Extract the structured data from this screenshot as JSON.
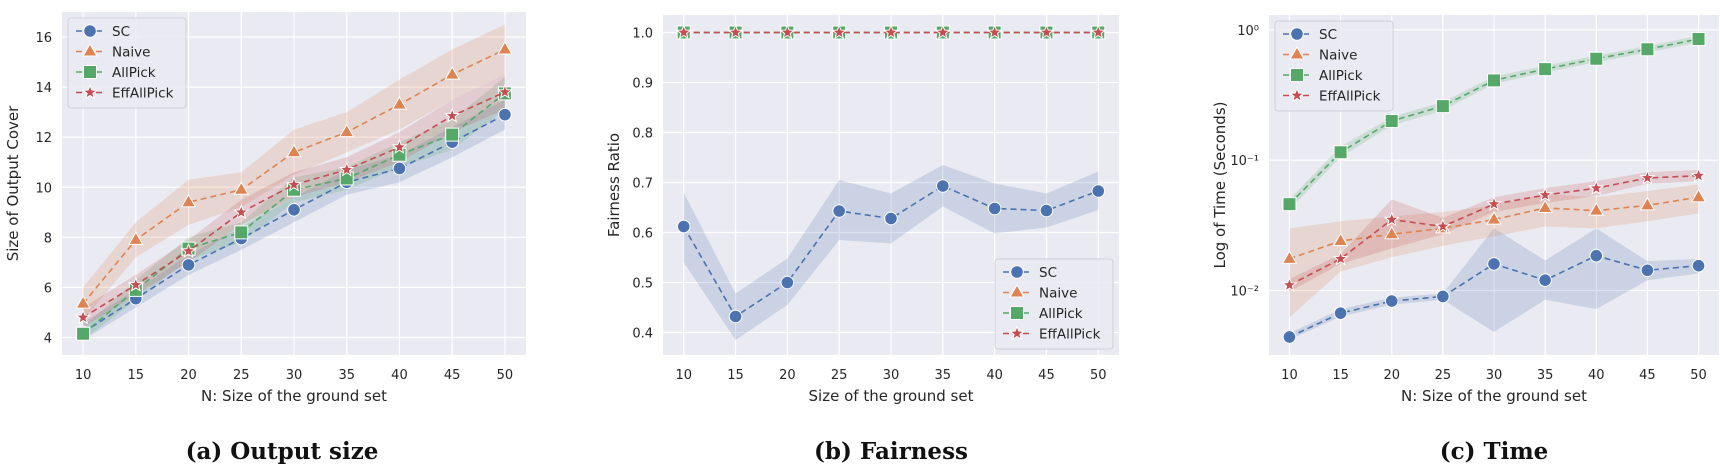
{
  "colors": {
    "SC": "#4c72b0",
    "Naive": "#dd8452",
    "AllPick": "#55a868",
    "EffAllPick": "#c44e52"
  },
  "chart_data": [
    {
      "type": "line",
      "caption": "(a) Output size",
      "xlabel": "N: Size of the ground set",
      "ylabel": "Size of Output Cover",
      "x": [
        10,
        15,
        20,
        25,
        30,
        35,
        40,
        45,
        50
      ],
      "xlim": [
        8,
        52
      ],
      "ylim": [
        3.3,
        17
      ],
      "yscale": "linear",
      "yticks": [
        4,
        6,
        8,
        10,
        12,
        14,
        16
      ],
      "ytick_labels": [
        "4",
        "6",
        "8",
        "10",
        "12",
        "14",
        "16"
      ],
      "grid": true,
      "legend": "top-left",
      "series": [
        {
          "name": "SC",
          "marker": "circle",
          "values": [
            4.2,
            5.55,
            6.9,
            7.95,
            9.1,
            10.2,
            10.75,
            11.8,
            12.9
          ],
          "lower": [
            3.9,
            5.2,
            6.5,
            7.5,
            8.6,
            9.7,
            10.2,
            11.2,
            12.3
          ],
          "upper": [
            4.6,
            5.9,
            7.3,
            8.4,
            9.6,
            10.7,
            11.3,
            12.4,
            13.5
          ]
        },
        {
          "name": "Naive",
          "marker": "triangle",
          "values": [
            5.35,
            7.9,
            9.4,
            9.9,
            11.4,
            12.2,
            13.3,
            14.5,
            15.5
          ],
          "lower": [
            4.7,
            7.2,
            8.5,
            9.2,
            10.5,
            11.4,
            12.3,
            13.5,
            14.5
          ],
          "upper": [
            6.0,
            8.6,
            10.3,
            10.6,
            12.3,
            13.0,
            14.3,
            15.5,
            16.5
          ]
        },
        {
          "name": "AllPick",
          "marker": "square",
          "values": [
            4.15,
            5.9,
            7.55,
            8.2,
            9.9,
            10.35,
            11.3,
            12.1,
            13.75
          ],
          "lower": [
            3.9,
            5.5,
            7.1,
            7.8,
            9.4,
            9.9,
            10.8,
            11.5,
            13.1
          ],
          "upper": [
            4.4,
            6.3,
            8.0,
            8.6,
            10.4,
            10.8,
            11.8,
            12.7,
            14.4
          ]
        },
        {
          "name": "EffAllPick",
          "marker": "star",
          "values": [
            4.8,
            6.1,
            7.45,
            9.0,
            10.1,
            10.7,
            11.6,
            12.85,
            13.8
          ],
          "lower": [
            4.4,
            5.7,
            7.0,
            8.5,
            9.6,
            10.2,
            11.0,
            12.2,
            13.1
          ],
          "upper": [
            5.2,
            6.5,
            7.9,
            9.5,
            10.6,
            11.2,
            12.2,
            13.5,
            14.5
          ]
        }
      ]
    },
    {
      "type": "line",
      "caption": "(b) Fairness",
      "xlabel": "Size of the ground set",
      "ylabel": "Fairness Ratio",
      "x": [
        10,
        15,
        20,
        25,
        30,
        35,
        40,
        45,
        50
      ],
      "xlim": [
        8,
        52
      ],
      "ylim": [
        0.355,
        1.035
      ],
      "yscale": "linear",
      "yticks": [
        0.4,
        0.5,
        0.6,
        0.7,
        0.8,
        0.9,
        1.0
      ],
      "ytick_labels": [
        "0.4",
        "0.5",
        "0.6",
        "0.7",
        "0.8",
        "0.9",
        "1.0"
      ],
      "grid": true,
      "legend": "bottom-right",
      "series": [
        {
          "name": "SC",
          "marker": "circle",
          "values": [
            0.612,
            0.432,
            0.5,
            0.643,
            0.628,
            0.693,
            0.648,
            0.644,
            0.683
          ],
          "lower": [
            0.54,
            0.385,
            0.455,
            0.585,
            0.578,
            0.652,
            0.598,
            0.61,
            0.645
          ],
          "upper": [
            0.68,
            0.478,
            0.548,
            0.705,
            0.678,
            0.735,
            0.698,
            0.678,
            0.722
          ]
        },
        {
          "name": "Naive",
          "marker": "triangle",
          "values": [
            1,
            1,
            1,
            1,
            1,
            1,
            1,
            1,
            1
          ]
        },
        {
          "name": "AllPick",
          "marker": "square",
          "values": [
            1,
            1,
            1,
            1,
            1,
            1,
            1,
            1,
            1
          ]
        },
        {
          "name": "EffAllPick",
          "marker": "star",
          "values": [
            1,
            1,
            1,
            1,
            1,
            1,
            1,
            1,
            1
          ]
        }
      ]
    },
    {
      "type": "line",
      "caption": "(c) Time",
      "xlabel": "N: Size of the ground set",
      "ylabel": "Log of Time (Seconds)",
      "x": [
        10,
        15,
        20,
        25,
        30,
        35,
        40,
        45,
        50
      ],
      "xlim": [
        8,
        52
      ],
      "ylim": [
        0.0032,
        1.3
      ],
      "yscale": "log",
      "yticks": [
        0.01,
        0.1,
        1
      ],
      "ytick_labels": [
        "10⁻²",
        "10⁻¹",
        "10⁰"
      ],
      "grid": true,
      "legend": "top-left",
      "series": [
        {
          "name": "SC",
          "marker": "circle",
          "values": [
            0.0044,
            0.0067,
            0.0083,
            0.009,
            0.016,
            0.012,
            0.0185,
            0.0143,
            0.0155
          ],
          "lower": [
            0.0042,
            0.0063,
            0.0078,
            0.0085,
            0.0048,
            0.0085,
            0.0072,
            0.012,
            0.0135
          ],
          "upper": [
            0.0047,
            0.0072,
            0.0088,
            0.0095,
            0.03,
            0.017,
            0.03,
            0.0168,
            0.0175
          ]
        },
        {
          "name": "Naive",
          "marker": "triangle",
          "values": [
            0.0175,
            0.024,
            0.027,
            0.03,
            0.035,
            0.043,
            0.041,
            0.045,
            0.052
          ],
          "lower": [
            0.0062,
            0.014,
            0.018,
            0.022,
            0.026,
            0.031,
            0.03,
            0.034,
            0.039
          ],
          "upper": [
            0.03,
            0.034,
            0.037,
            0.04,
            0.045,
            0.055,
            0.052,
            0.058,
            0.065
          ]
        },
        {
          "name": "AllPick",
          "marker": "square",
          "values": [
            0.046,
            0.115,
            0.2,
            0.26,
            0.41,
            0.5,
            0.6,
            0.71,
            0.85
          ],
          "lower": [
            0.042,
            0.105,
            0.185,
            0.24,
            0.385,
            0.47,
            0.565,
            0.67,
            0.8
          ],
          "upper": [
            0.05,
            0.127,
            0.215,
            0.28,
            0.44,
            0.53,
            0.635,
            0.75,
            0.9
          ]
        },
        {
          "name": "EffAllPick",
          "marker": "star",
          "values": [
            0.011,
            0.0175,
            0.035,
            0.031,
            0.046,
            0.054,
            0.061,
            0.073,
            0.076
          ],
          "lower": [
            0.0098,
            0.016,
            0.021,
            0.027,
            0.04,
            0.047,
            0.053,
            0.066,
            0.069
          ],
          "upper": [
            0.0122,
            0.019,
            0.05,
            0.036,
            0.052,
            0.061,
            0.069,
            0.081,
            0.084
          ]
        }
      ]
    }
  ]
}
